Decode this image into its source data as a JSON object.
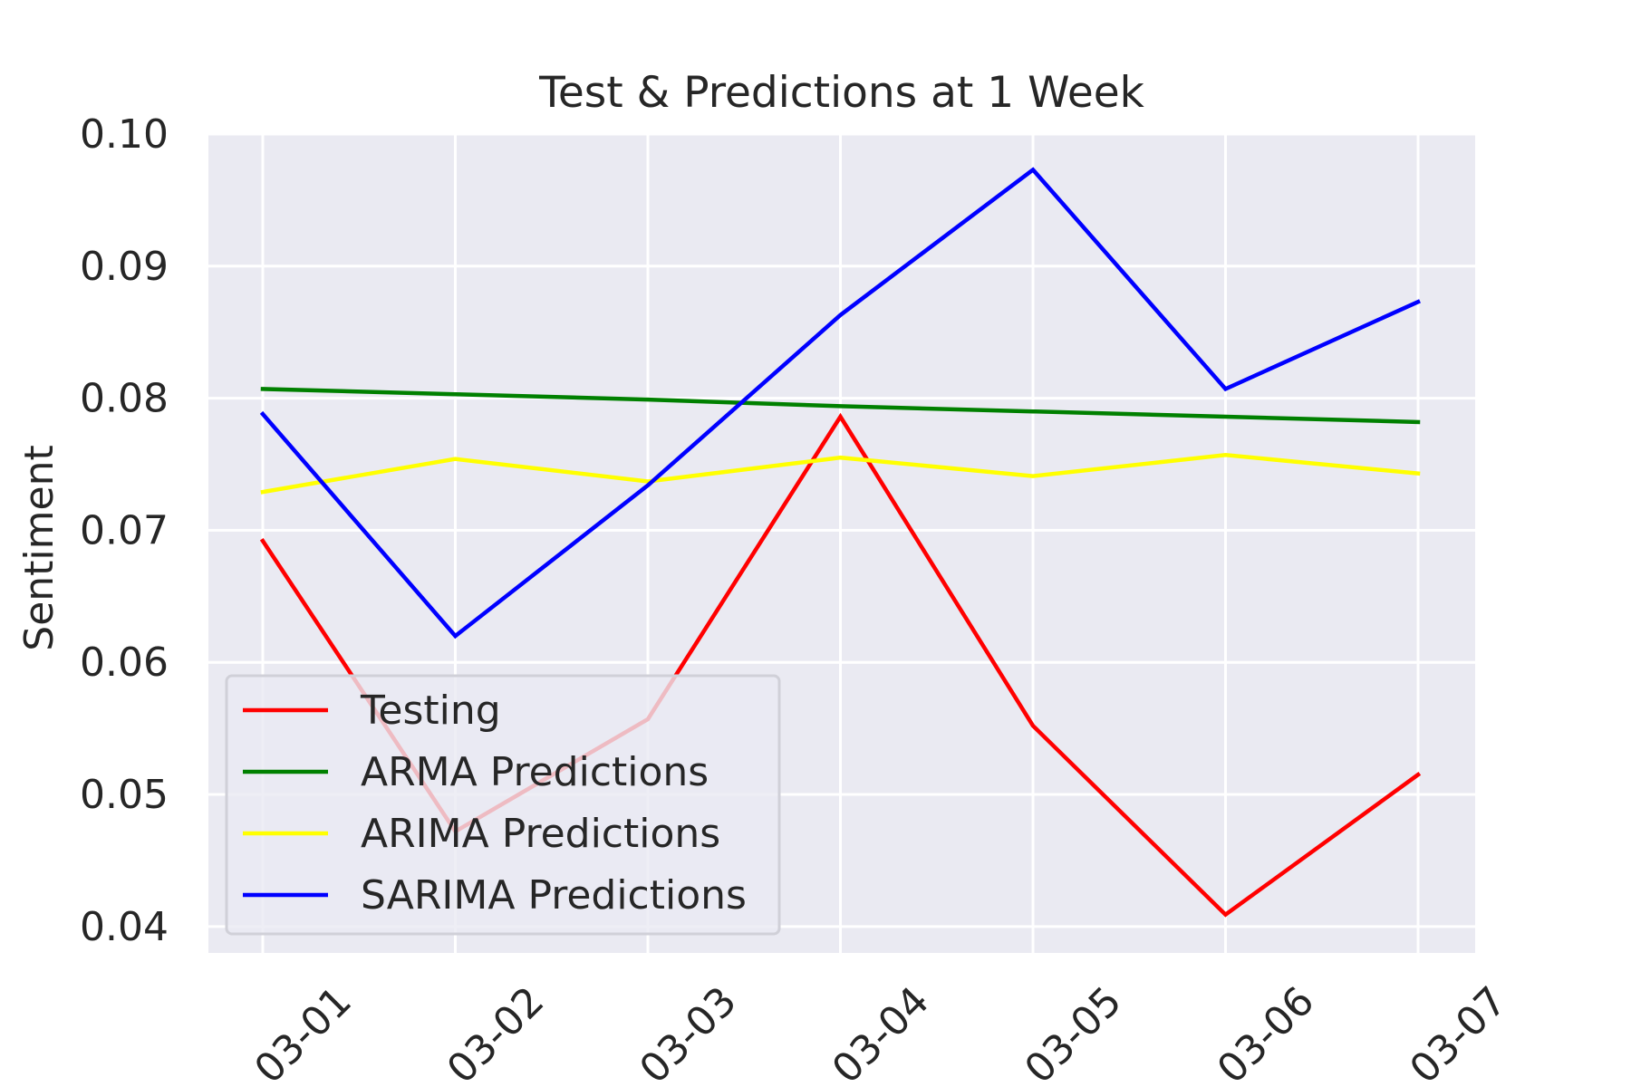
{
  "chart_data": {
    "type": "line",
    "title": "Test & Predictions at 1 Week",
    "xlabel": "",
    "ylabel": "Sentiment",
    "categories": [
      "03-01",
      "03-02",
      "03-03",
      "03-04",
      "03-05",
      "03-06",
      "03-07"
    ],
    "ylim": [
      0.038,
      0.1
    ],
    "yticks": [
      "0.04",
      "0.05",
      "0.06",
      "0.07",
      "0.08",
      "0.09",
      "0.10"
    ],
    "ytick_values": [
      0.04,
      0.05,
      0.06,
      0.07,
      0.08,
      0.09,
      0.1
    ],
    "grid": true,
    "legend": "lower-left",
    "series": [
      {
        "name": "Testing",
        "color": "#ff0000",
        "values": [
          0.0692,
          0.0472,
          0.0557,
          0.0786,
          0.0552,
          0.0409,
          0.0515
        ]
      },
      {
        "name": "ARMA Predictions",
        "color": "#008000",
        "values": [
          0.0807,
          0.0803,
          0.0799,
          0.0794,
          0.079,
          0.0786,
          0.0782
        ]
      },
      {
        "name": "ARIMA Predictions",
        "color": "#ffff00",
        "values": [
          0.0729,
          0.0754,
          0.0737,
          0.0755,
          0.0741,
          0.0757,
          0.0743
        ]
      },
      {
        "name": "SARIMA Predictions",
        "color": "#0000ff",
        "values": [
          0.0788,
          0.062,
          0.0734,
          0.0863,
          0.0973,
          0.0807,
          0.0873
        ]
      }
    ]
  }
}
